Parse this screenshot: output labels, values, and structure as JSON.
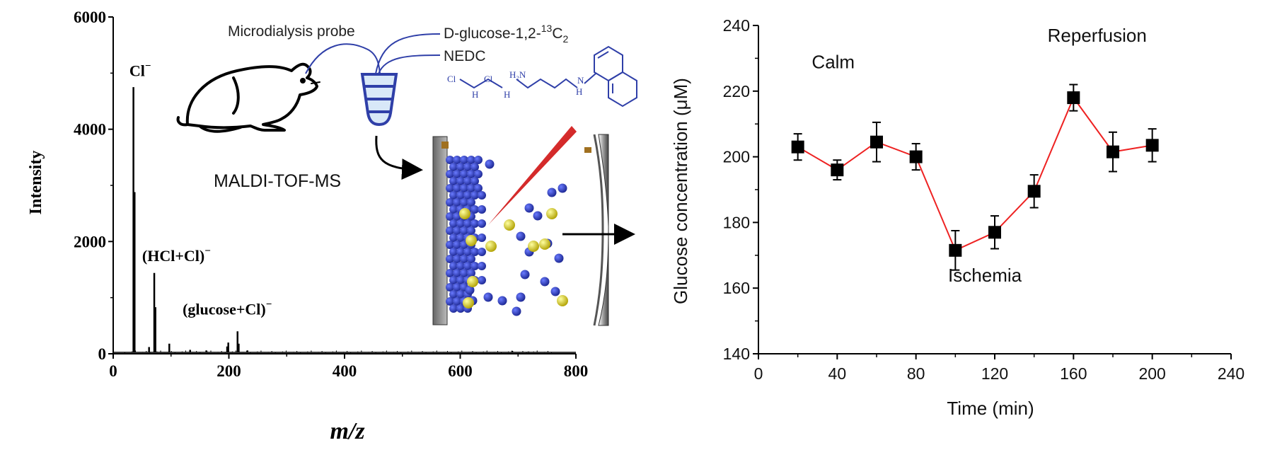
{
  "chart_data": [
    {
      "type": "line",
      "xlabel": "m/z",
      "ylabel": "Intensity",
      "xlim": [
        0,
        800
      ],
      "ylim": [
        0,
        6000
      ],
      "xticks": [
        "0",
        "200",
        "400",
        "600",
        "800"
      ],
      "yticks": [
        "0",
        "2000",
        "4000",
        "6000"
      ],
      "grid": false,
      "peaks": [
        {
          "x": 35,
          "y": 4750
        },
        {
          "x": 37,
          "y": 2880
        },
        {
          "x": 62,
          "y": 120
        },
        {
          "x": 71,
          "y": 1440
        },
        {
          "x": 73,
          "y": 830
        },
        {
          "x": 97,
          "y": 180
        },
        {
          "x": 133,
          "y": 70
        },
        {
          "x": 161,
          "y": 60
        },
        {
          "x": 197,
          "y": 130
        },
        {
          "x": 199,
          "y": 200
        },
        {
          "x": 215,
          "y": 400
        },
        {
          "x": 217,
          "y": 180
        },
        {
          "x": 232,
          "y": 60
        },
        {
          "x": 690,
          "y": 50
        },
        {
          "x": 718,
          "y": 40
        }
      ],
      "annotations": [
        {
          "text": "Cl",
          "sup": "−",
          "x": 28,
          "y": 4950
        },
        {
          "text": "(HCl+Cl)",
          "sup": "−",
          "x": 50,
          "y": 1650
        },
        {
          "text": "(glucose+Cl)",
          "sup": "−",
          "x": 120,
          "y": 700
        }
      ]
    },
    {
      "type": "line",
      "xlabel": "Time (min)",
      "ylabel": "Glucose concentration (μM)",
      "xlim": [
        0,
        240
      ],
      "ylim": [
        140,
        240
      ],
      "xticks": [
        "0",
        "40",
        "80",
        "120",
        "160",
        "200",
        "240"
      ],
      "yticks": [
        "140",
        "160",
        "180",
        "200",
        "220",
        "240"
      ],
      "grid": false,
      "series": [
        {
          "color": "#ee2222",
          "marker": "square",
          "x": [
            20,
            40,
            60,
            80,
            100,
            120,
            140,
            160,
            180,
            200
          ],
          "y": [
            203,
            196,
            204.5,
            200,
            171.5,
            177,
            189.5,
            218,
            201.5,
            203.5
          ],
          "err": [
            4,
            3,
            6,
            4,
            6,
            5,
            5,
            4,
            6,
            5
          ]
        }
      ],
      "annotations": [
        {
          "text": "Calm",
          "x": 38,
          "y": 227
        },
        {
          "text": "Ischemia",
          "x": 115,
          "y": 162
        },
        {
          "text": "Reperfusion",
          "x": 172,
          "y": 235
        }
      ]
    }
  ],
  "schematic": {
    "probe_label": "Microdialysis probe",
    "reagent1": "D-glucose-1,2-",
    "reagent1_sup": "13",
    "reagent1_tail": "C",
    "reagent1_sub": "2",
    "reagent2": "NEDC",
    "method_label": "MALDI-TOF-MS",
    "chem": {
      "cl1": "Cl",
      "h1": "H",
      "cl2": "Cl",
      "h2": "H",
      "h2n": "H₂N",
      "n": "N",
      "h3": "H"
    }
  }
}
